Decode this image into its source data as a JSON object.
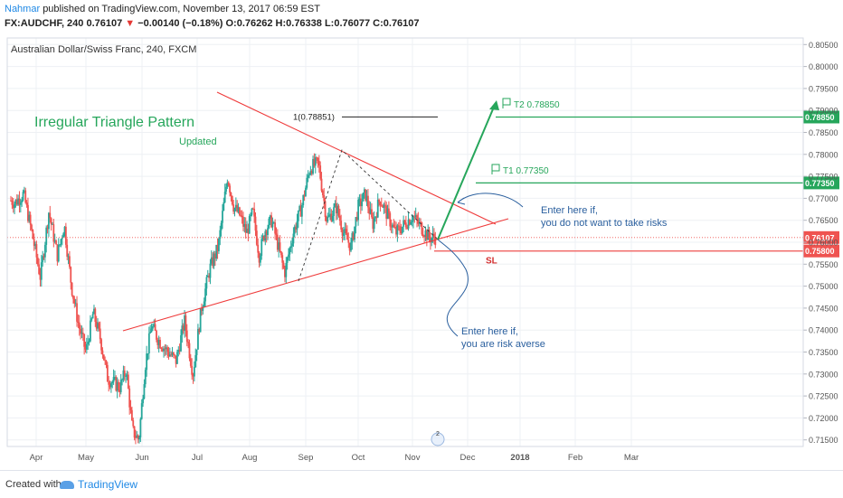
{
  "header": {
    "author": "Nahmar",
    "publish_text": "published on TradingView.com, November 13, 2017 06:59 EST",
    "symbol_line_a": "FX:AUDCHF, 240 0.76107",
    "down_arrow": "▼",
    "change": "−0.00140 (−0.18%)",
    "ohlc": "O:0.76262 H:0.76338 L:0.76077 C:0.76107"
  },
  "legend": "Australian Dollar/Swiss Franc, 240, FXCM",
  "footer": {
    "created_with": "Created with",
    "brand": "TradingView"
  },
  "colors": {
    "up": "#26a69a",
    "down": "#ef5350",
    "trend": "#ef3b3b",
    "target": "#26a65b",
    "note": "#2a5f9e"
  },
  "annotations": {
    "title": "Irregular Triangle Pattern",
    "subtitle": "Updated",
    "fib_label": "1(0.78851)",
    "t2_label": "T2   0.78850",
    "t1_label": "T1   0.77350",
    "sl_label": "SL",
    "note1_line1": "Enter here if,",
    "note1_line2": "you do not want to take risks",
    "note2_line1": "Enter here if,",
    "note2_line2": "you are risk averse"
  },
  "chart_data": {
    "type": "candlestick",
    "symbol": "FX:AUDCHF",
    "timeframe": "240",
    "x_ticks": [
      "Apr",
      "May",
      "Jun",
      "Jul",
      "Aug",
      "Sep",
      "Oct",
      "Nov",
      "Dec",
      "2018",
      "Feb",
      "Mar"
    ],
    "y_ticks": [
      "0.80500",
      "0.80000",
      "0.79500",
      "0.79000",
      "0.78500",
      "0.78000",
      "0.77500",
      "0.77000",
      "0.76500",
      "0.76000",
      "0.75500",
      "0.75000",
      "0.74500",
      "0.74000",
      "0.73500",
      "0.73000",
      "0.72500",
      "0.72000",
      "0.71500"
    ],
    "ylim": [
      0.7135,
      0.8065
    ],
    "price_path": [
      [
        "Apr",
        0.769
      ],
      [
        "Apr",
        0.771
      ],
      [
        "Apr",
        0.762
      ],
      [
        "Apr",
        0.752
      ],
      [
        "Apr",
        0.767
      ],
      [
        "Apr",
        0.757
      ],
      [
        "May",
        0.764
      ],
      [
        "May",
        0.75
      ],
      [
        "May",
        0.741
      ],
      [
        "May",
        0.735
      ],
      [
        "May",
        0.744
      ],
      [
        "May",
        0.738
      ],
      [
        "May",
        0.729
      ],
      [
        "Jun",
        0.727
      ],
      [
        "Jun",
        0.731
      ],
      [
        "Jun",
        0.717
      ],
      [
        "Jun",
        0.715
      ],
      [
        "Jun",
        0.732
      ],
      [
        "Jun",
        0.741
      ],
      [
        "Jun",
        0.738
      ],
      [
        "Jun",
        0.736
      ],
      [
        "Jul",
        0.733
      ],
      [
        "Jul",
        0.742
      ],
      [
        "Jul",
        0.73
      ],
      [
        "Jul",
        0.745
      ],
      [
        "Jul",
        0.754
      ],
      [
        "Jul",
        0.759
      ],
      [
        "Aug",
        0.775
      ],
      [
        "Aug",
        0.768
      ],
      [
        "Aug",
        0.766
      ],
      [
        "Aug",
        0.762
      ],
      [
        "Aug",
        0.767
      ],
      [
        "Aug",
        0.757
      ],
      [
        "Aug",
        0.763
      ],
      [
        "Aug",
        0.765
      ],
      [
        "Sep",
        0.753
      ],
      [
        "Sep",
        0.762
      ],
      [
        "Sep",
        0.768
      ],
      [
        "Sep",
        0.777
      ],
      [
        "Sep",
        0.778
      ],
      [
        "Sep",
        0.765
      ],
      [
        "Oct",
        0.768
      ],
      [
        "Oct",
        0.762
      ],
      [
        "Oct",
        0.759
      ],
      [
        "Oct",
        0.768
      ],
      [
        "Oct",
        0.771
      ],
      [
        "Oct",
        0.764
      ],
      [
        "Oct",
        0.77
      ],
      [
        "Nov",
        0.762
      ],
      [
        "Nov",
        0.766
      ],
      [
        "Nov",
        0.761
      ]
    ],
    "last_price": 0.76107,
    "countdown": "02:00:44",
    "horizontal_levels": [
      {
        "name": "T2",
        "price": 0.7885
      },
      {
        "name": "T1",
        "price": 0.7735
      },
      {
        "name": "SL",
        "price": 0.758
      }
    ],
    "fib_level": 0.78851
  }
}
